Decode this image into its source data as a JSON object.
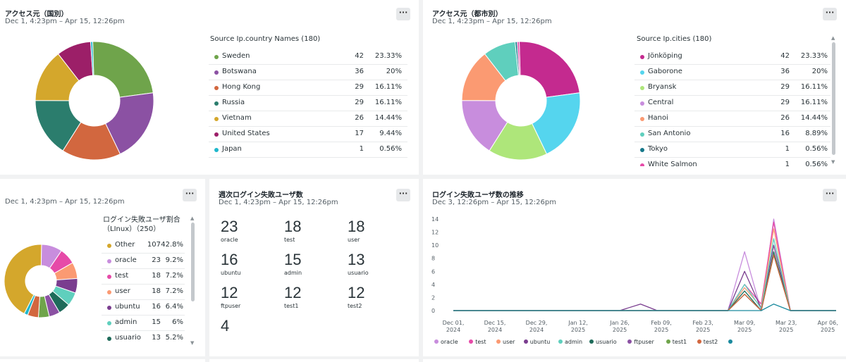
{
  "cards": {
    "country": {
      "title": "アクセス元（国別）",
      "subtitle": "Dec 1, 4:23pm – Apr 15, 12:26pm",
      "menu_label": "···",
      "table_header": "Source Ip.country Names (180)",
      "rows": [
        {
          "name": "Sweden",
          "count": "42",
          "pct": "23.33%",
          "color": "#6fa44b"
        },
        {
          "name": "Botswana",
          "count": "36",
          "pct": "20%",
          "color": "#8b51a3"
        },
        {
          "name": "Hong Kong",
          "count": "29",
          "pct": "16.11%",
          "color": "#d2673f"
        },
        {
          "name": "Russia",
          "count": "29",
          "pct": "16.11%",
          "color": "#2b7d6d"
        },
        {
          "name": "Vietnam",
          "count": "26",
          "pct": "14.44%",
          "color": "#d4a72c"
        },
        {
          "name": "United States",
          "count": "17",
          "pct": "9.44%",
          "color": "#9c1f68"
        },
        {
          "name": "Japan",
          "count": "1",
          "pct": "0.56%",
          "color": "#1fb7cc"
        }
      ]
    },
    "city": {
      "title": "アクセス元（都市別）",
      "subtitle": "Dec 1, 4:23pm – Apr 15, 12:26pm",
      "menu_label": "···",
      "table_header": "Source Ip.cities (180)",
      "rows": [
        {
          "name": "Jönköping",
          "count": "42",
          "pct": "23.33%",
          "color": "#c42a8f"
        },
        {
          "name": "Gaborone",
          "count": "36",
          "pct": "20%",
          "color": "#55d5ee"
        },
        {
          "name": "Bryansk",
          "count": "29",
          "pct": "16.11%",
          "color": "#aee67a"
        },
        {
          "name": "Central",
          "count": "29",
          "pct": "16.11%",
          "color": "#c88ddd"
        },
        {
          "name": "Hanoi",
          "count": "26",
          "pct": "14.44%",
          "color": "#fb9a72"
        },
        {
          "name": "San Antonio",
          "count": "16",
          "pct": "8.89%",
          "color": "#5fcfbd"
        },
        {
          "name": "Tokyo",
          "count": "1",
          "pct": "0.56%",
          "color": "#16788a"
        },
        {
          "name": "White Salmon",
          "count": "1",
          "pct": "0.56%",
          "color": "#e64aa8"
        }
      ]
    },
    "linux": {
      "subtitle": "Dec 1, 4:23pm – Apr 15, 12:26pm",
      "menu_label": "···",
      "table_header_line1": "ログイン失敗ユーザ割合",
      "table_header_line2": "（LInux）（250）",
      "rows": [
        {
          "name": "Other",
          "count": "107",
          "pct": "42.8%",
          "color": "#d4a72c"
        },
        {
          "name": "oracle",
          "count": "23",
          "pct": "9.2%",
          "color": "#c88ddd"
        },
        {
          "name": "test",
          "count": "18",
          "pct": "7.2%",
          "color": "#e64aa8"
        },
        {
          "name": "user",
          "count": "18",
          "pct": "7.2%",
          "color": "#fb9a72"
        },
        {
          "name": "ubuntu",
          "count": "16",
          "pct": "6.4%",
          "color": "#7a3d8f"
        },
        {
          "name": "admin",
          "count": "15",
          "pct": "6%",
          "color": "#5fcfbd"
        },
        {
          "name": "usuario",
          "count": "13",
          "pct": "5.2%",
          "color": "#1e6b5a"
        }
      ],
      "donut_rest": [
        {
          "color": "#8b51a3",
          "value": 12
        },
        {
          "color": "#6fa44b",
          "value": 12
        },
        {
          "color": "#d2673f",
          "value": 12
        },
        {
          "color": "#1fb7cc",
          "value": 4
        }
      ]
    },
    "weekly": {
      "title": "週次ログイン失敗ユーザ数",
      "subtitle": "Dec 1, 4:23pm – Apr 15, 12:26pm",
      "menu_label": "···",
      "items": [
        {
          "value": "23",
          "label": "oracle"
        },
        {
          "value": "18",
          "label": "test"
        },
        {
          "value": "18",
          "label": "user"
        },
        {
          "value": "16",
          "label": "ubuntu"
        },
        {
          "value": "15",
          "label": "admin"
        },
        {
          "value": "13",
          "label": "usuario"
        },
        {
          "value": "12",
          "label": "ftpuser"
        },
        {
          "value": "12",
          "label": "test1"
        },
        {
          "value": "12",
          "label": "test2"
        },
        {
          "value": "4",
          "label": ""
        }
      ]
    },
    "trend": {
      "title": "ログイン失敗ユーザ数の推移",
      "subtitle": "Dec 3, 12:26pm – Apr 15, 12:26pm",
      "menu_label": "···"
    }
  },
  "chart_data": {
    "type": "line",
    "x": [
      "Dec 01,\n2024",
      "Dec 15,\n2024",
      "Dec 29,\n2024",
      "Jan 12,\n2025",
      "Jan 26,\n2025",
      "Feb 09,\n2025",
      "Feb 23,\n2025",
      "Mar 09,\n2025",
      "Mar 23,\n2025",
      "Apr 06,\n2025"
    ],
    "yticks": [
      0,
      2,
      4,
      6,
      8,
      10,
      12,
      14
    ],
    "ylim": [
      0,
      14
    ],
    "x_index_range": [
      0,
      9.2
    ],
    "series": [
      {
        "name": "oracle",
        "color": "#c88ddd",
        "points": [
          [
            0,
            0
          ],
          [
            6.6,
            0
          ],
          [
            7,
            9
          ],
          [
            7.4,
            0
          ],
          [
            7.7,
            14
          ],
          [
            8.1,
            0
          ],
          [
            9.2,
            0
          ]
        ]
      },
      {
        "name": "test",
        "color": "#e64aa8",
        "points": [
          [
            0,
            0
          ],
          [
            6.6,
            0
          ],
          [
            7,
            4
          ],
          [
            7.4,
            1
          ],
          [
            7.7,
            13.5
          ],
          [
            8.1,
            0
          ],
          [
            9.2,
            0
          ]
        ]
      },
      {
        "name": "user",
        "color": "#fb9a72",
        "points": [
          [
            0,
            0
          ],
          [
            6.6,
            0
          ],
          [
            7,
            3.5
          ],
          [
            7.4,
            0.5
          ],
          [
            7.7,
            12.5
          ],
          [
            8.1,
            0
          ],
          [
            9.2,
            0
          ]
        ]
      },
      {
        "name": "ubuntu",
        "color": "#7a3d8f",
        "points": [
          [
            0,
            0
          ],
          [
            4,
            0
          ],
          [
            4.5,
            1
          ],
          [
            4.9,
            0
          ],
          [
            6.6,
            0
          ],
          [
            7,
            6
          ],
          [
            7.4,
            0.3
          ],
          [
            7.7,
            10
          ],
          [
            8.1,
            0
          ],
          [
            9.2,
            0
          ]
        ]
      },
      {
        "name": "admin",
        "color": "#5fcfbd",
        "points": [
          [
            0,
            0
          ],
          [
            6.6,
            0
          ],
          [
            7,
            4
          ],
          [
            7.4,
            0.3
          ],
          [
            7.7,
            11
          ],
          [
            8.1,
            0
          ],
          [
            9.2,
            0
          ]
        ]
      },
      {
        "name": "usuario",
        "color": "#1e6b5a",
        "points": [
          [
            0,
            0
          ],
          [
            6.6,
            0
          ],
          [
            7,
            3
          ],
          [
            7.4,
            0
          ],
          [
            7.7,
            9
          ],
          [
            8.1,
            0
          ],
          [
            9.2,
            0
          ]
        ]
      },
      {
        "name": "ftpuser",
        "color": "#8b51a3",
        "points": [
          [
            0,
            0
          ],
          [
            6.6,
            0
          ],
          [
            7,
            2.5
          ],
          [
            7.4,
            0
          ],
          [
            7.7,
            8.5
          ],
          [
            8.1,
            0
          ],
          [
            9.2,
            0
          ]
        ]
      },
      {
        "name": "test1",
        "color": "#6fa44b",
        "points": [
          [
            0,
            0
          ],
          [
            6.6,
            0
          ],
          [
            7,
            2.5
          ],
          [
            7.4,
            0
          ],
          [
            7.7,
            8.5
          ],
          [
            8.1,
            0
          ],
          [
            9.2,
            0
          ]
        ]
      },
      {
        "name": "test2",
        "color": "#d2673f",
        "points": [
          [
            0,
            0
          ],
          [
            6.6,
            0
          ],
          [
            7,
            2.5
          ],
          [
            7.4,
            0
          ],
          [
            7.7,
            8.5
          ],
          [
            8.1,
            0
          ],
          [
            9.2,
            0
          ]
        ]
      },
      {
        "name": "",
        "color": "#1a8a9e",
        "points": [
          [
            0,
            0
          ],
          [
            6.6,
            0
          ],
          [
            7,
            0
          ],
          [
            7.4,
            0
          ],
          [
            7.7,
            1
          ],
          [
            8.1,
            0
          ],
          [
            9.2,
            0
          ]
        ]
      }
    ],
    "grid": false,
    "legend": "bottom"
  }
}
